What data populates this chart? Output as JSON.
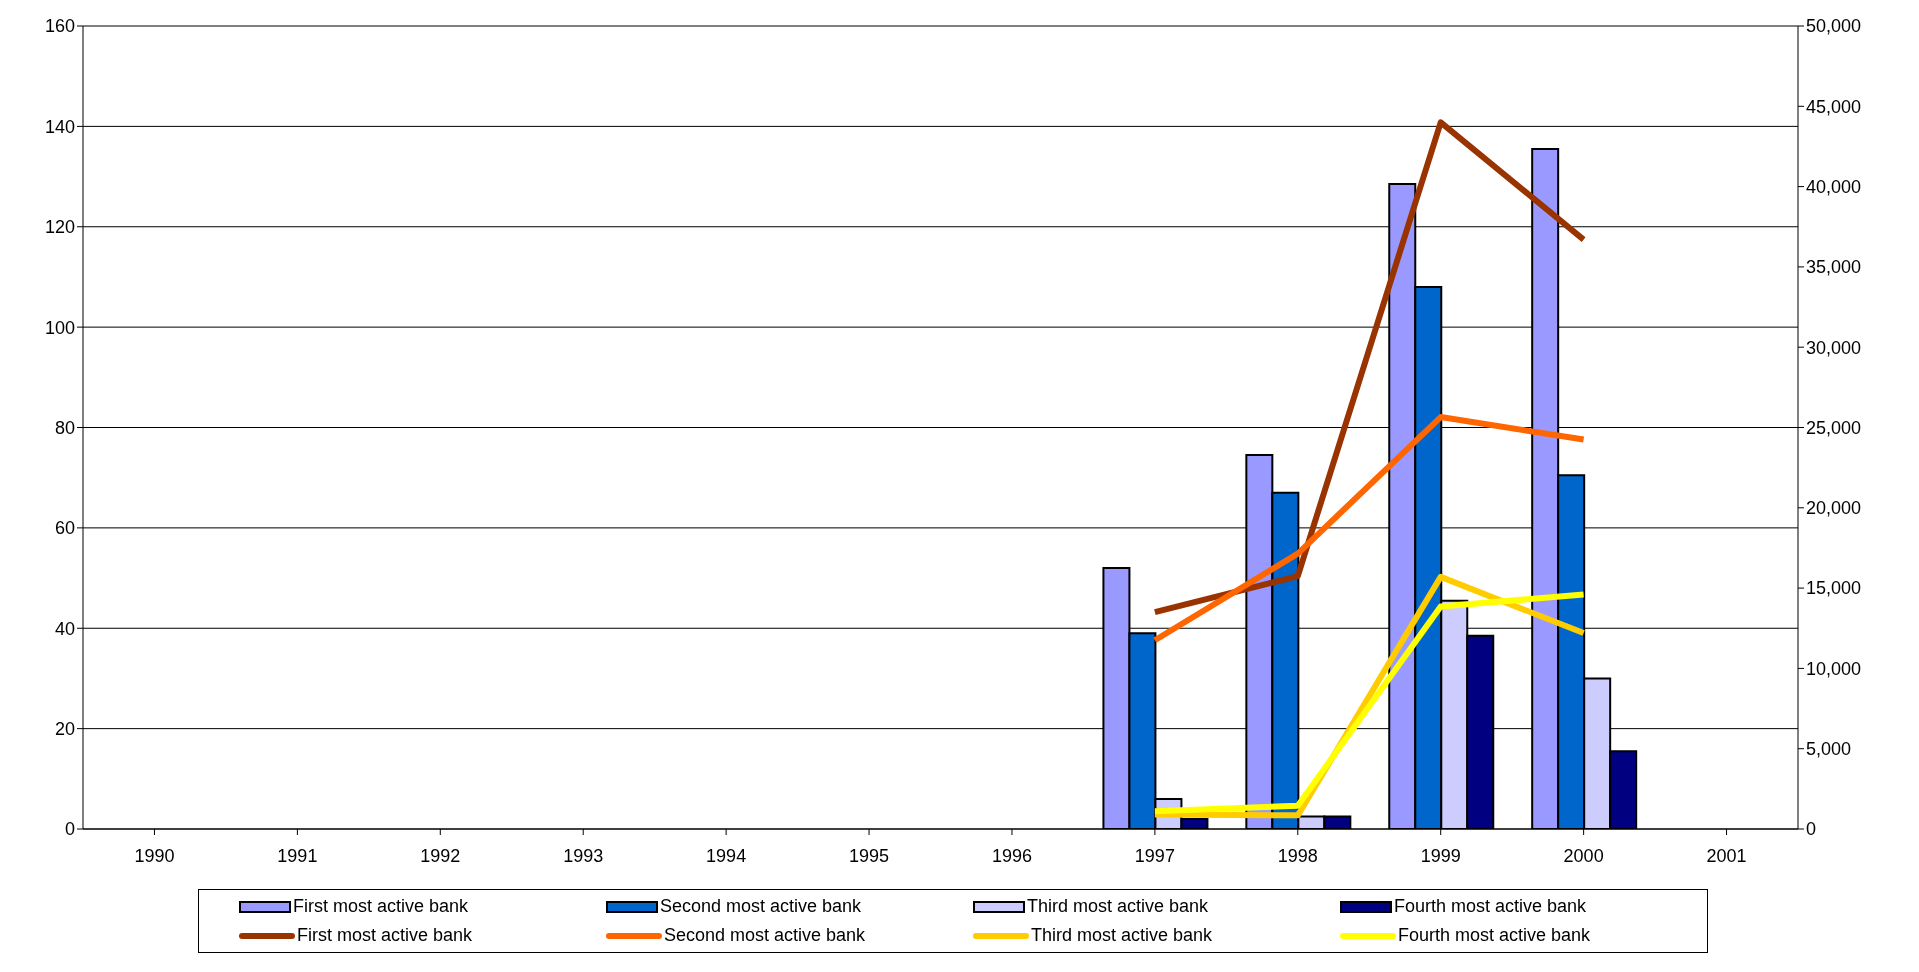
{
  "chart_data": {
    "type": "bar",
    "categories": [
      "1990",
      "1991",
      "1992",
      "1993",
      "1994",
      "1995",
      "1996",
      "1997",
      "1998",
      "1999",
      "2000",
      "2001"
    ],
    "series": [
      {
        "name": "First most active bank",
        "color": "#9999ff",
        "values": [
          null,
          null,
          null,
          null,
          null,
          null,
          null,
          52,
          74.5,
          128.5,
          135.5,
          null
        ]
      },
      {
        "name": "Second most active bank",
        "color": "#0066cc",
        "values": [
          null,
          null,
          null,
          null,
          null,
          null,
          null,
          39,
          67,
          108,
          70.5,
          null
        ]
      },
      {
        "name": "Third most active bank",
        "color": "#ccccff",
        "values": [
          null,
          null,
          null,
          null,
          null,
          null,
          null,
          6,
          2.5,
          45.5,
          30,
          null
        ]
      },
      {
        "name": "Fourth most active bank",
        "color": "#000080",
        "values": [
          null,
          null,
          null,
          null,
          null,
          null,
          null,
          2,
          2.5,
          38.5,
          15.5,
          null
        ]
      },
      {
        "name": "First most active bank",
        "type": "line",
        "axis": "y2",
        "color": "#993300",
        "values": [
          null,
          null,
          null,
          null,
          null,
          null,
          null,
          13500,
          15750,
          44000,
          36700,
          null
        ]
      },
      {
        "name": "Second most active bank",
        "type": "line",
        "axis": "y2",
        "color": "#ff6600",
        "values": [
          null,
          null,
          null,
          null,
          null,
          null,
          null,
          11750,
          17150,
          25650,
          24250,
          null
        ]
      },
      {
        "name": "Third most active bank",
        "type": "line",
        "axis": "y2",
        "color": "#ffcc00",
        "values": [
          null,
          null,
          null,
          null,
          null,
          null,
          null,
          900,
          850,
          15700,
          12200,
          null
        ]
      },
      {
        "name": "Fourth most active bank",
        "type": "line",
        "axis": "y2",
        "color": "#ffff00",
        "values": [
          null,
          null,
          null,
          null,
          null,
          null,
          null,
          1100,
          1450,
          13850,
          14600,
          null
        ]
      }
    ],
    "ylim": [
      0,
      160
    ],
    "yticks": [
      0,
      20,
      40,
      60,
      80,
      100,
      120,
      140,
      160
    ],
    "y2lim": [
      0,
      50000
    ],
    "y2ticks": [
      {
        "value": 0,
        "label": "0"
      },
      {
        "value": 5000,
        "label": "5,000"
      },
      {
        "value": 10000,
        "label": "10,000"
      },
      {
        "value": 15000,
        "label": "15,000"
      },
      {
        "value": 20000,
        "label": "20,000"
      },
      {
        "value": 25000,
        "label": "25,000"
      },
      {
        "value": 30000,
        "label": "30,000"
      },
      {
        "value": 35000,
        "label": "35,000"
      },
      {
        "value": 40000,
        "label": "40,000"
      },
      {
        "value": 45000,
        "label": "45,000"
      },
      {
        "value": 50000,
        "label": "50,000"
      }
    ],
    "grid": "y",
    "legend": "bottom",
    "marker": "none",
    "line_style": "solid"
  }
}
